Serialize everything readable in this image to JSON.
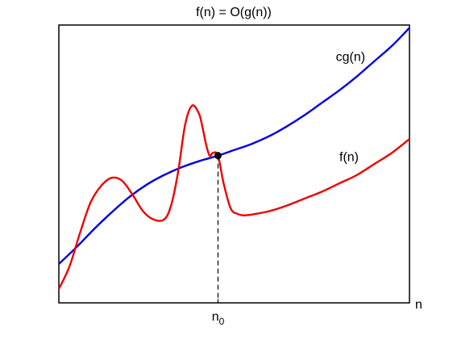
{
  "chart_data": {
    "type": "line",
    "title": "f(n) = O(g(n))",
    "xlabel": "n",
    "ylabel": "",
    "grid": false,
    "x_tick_label": "n",
    "x_tick_subscript": "0",
    "xlim": [
      0,
      1
    ],
    "ylim": [
      0,
      1
    ],
    "n0": 0.454,
    "series": [
      {
        "name": "cg(n)",
        "color": "#0000dd",
        "x": [
          0.0,
          0.05,
          0.1,
          0.15,
          0.2,
          0.25,
          0.3,
          0.35,
          0.4,
          0.454,
          0.5,
          0.55,
          0.6,
          0.65,
          0.7,
          0.75,
          0.8,
          0.85,
          0.9,
          0.95,
          1.0
        ],
        "y": [
          0.14,
          0.2,
          0.265,
          0.325,
          0.38,
          0.425,
          0.46,
          0.488,
          0.51,
          0.53,
          0.55,
          0.572,
          0.6,
          0.635,
          0.675,
          0.72,
          0.765,
          0.815,
          0.87,
          0.925,
          0.99
        ]
      },
      {
        "name": "f(n)",
        "color": "#ee0000",
        "x": [
          0.0,
          0.03,
          0.06,
          0.09,
          0.12,
          0.15,
          0.18,
          0.21,
          0.24,
          0.27,
          0.3,
          0.32,
          0.34,
          0.36,
          0.38,
          0.4,
          0.41,
          0.42,
          0.43,
          0.44,
          0.454,
          0.47,
          0.49,
          0.51,
          0.53,
          0.56,
          0.6,
          0.65,
          0.7,
          0.75,
          0.8,
          0.85,
          0.9,
          0.95,
          1.0
        ],
        "y": [
          0.05,
          0.13,
          0.25,
          0.36,
          0.42,
          0.45,
          0.44,
          0.39,
          0.33,
          0.3,
          0.3,
          0.35,
          0.47,
          0.64,
          0.71,
          0.68,
          0.63,
          0.57,
          0.53,
          0.54,
          0.53,
          0.43,
          0.34,
          0.32,
          0.315,
          0.32,
          0.33,
          0.35,
          0.375,
          0.4,
          0.43,
          0.46,
          0.5,
          0.54,
          0.59
        ]
      }
    ],
    "annotations": [
      {
        "text": "cg(n)",
        "x": 0.79,
        "y": 0.87
      },
      {
        "text": "f(n)",
        "x": 0.8,
        "y": 0.51
      }
    ]
  }
}
